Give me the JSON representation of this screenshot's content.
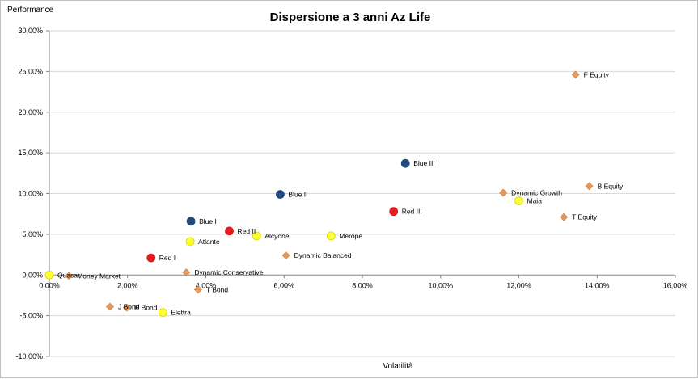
{
  "chart_data": {
    "type": "scatter",
    "title": "Dispersione a 3 anni Az Life",
    "xlabel": "Volatilità",
    "ylabel": "Performance",
    "xlim": [
      0,
      16
    ],
    "ylim": [
      -10,
      30
    ],
    "x_ticks": [
      0,
      2,
      4,
      6,
      8,
      10,
      12,
      14,
      16
    ],
    "y_ticks": [
      -10,
      -5,
      0,
      5,
      10,
      15,
      20,
      25,
      30
    ],
    "x_tick_labels": [
      "0,00%",
      "2,00%",
      "4,00%",
      "6,00%",
      "8,00%",
      "10,00%",
      "12,00%",
      "14,00%",
      "16,00%"
    ],
    "y_tick_labels": [
      "-10,00%",
      "-5,00%",
      "0,00%",
      "5,00%",
      "10,00%",
      "15,00%",
      "20,00%",
      "25,00%",
      "30,00%"
    ],
    "grid": "horizontal",
    "colors": {
      "blue": "#1f497d",
      "red": "#e41a1c",
      "yellow": "#ffff33",
      "orange": "#e59a5c",
      "grid": "#d9d9d9",
      "axis": "#868686"
    },
    "series": [
      {
        "name": "Blue",
        "marker": "circle",
        "color": "#1f497d",
        "points": [
          {
            "label": "Blue I",
            "x": 3.62,
            "y": 6.6
          },
          {
            "label": "Blue II",
            "x": 5.9,
            "y": 9.9
          },
          {
            "label": "Blue III",
            "x": 9.1,
            "y": 13.7
          }
        ]
      },
      {
        "name": "Red",
        "marker": "circle",
        "color": "#e41a1c",
        "points": [
          {
            "label": "Red I",
            "x": 2.6,
            "y": 2.1
          },
          {
            "label": "Red II",
            "x": 4.6,
            "y": 5.4
          },
          {
            "label": "Red III",
            "x": 8.8,
            "y": 7.8
          }
        ]
      },
      {
        "name": "Yellow",
        "marker": "circle",
        "color": "#ffff33",
        "points": [
          {
            "label": "Quasar",
            "x": 0.0,
            "y": 0.0
          },
          {
            "label": "Atlante",
            "x": 3.6,
            "y": 4.1
          },
          {
            "label": "Alcyone",
            "x": 5.3,
            "y": 4.8
          },
          {
            "label": "Merope",
            "x": 7.2,
            "y": 4.8
          },
          {
            "label": "Maia",
            "x": 12.0,
            "y": 9.1
          },
          {
            "label": "Elettra",
            "x": 2.9,
            "y": -4.6
          }
        ]
      },
      {
        "name": "Orange",
        "marker": "diamond",
        "color": "#e59a5c",
        "points": [
          {
            "label": "Money Market",
            "x": 0.5,
            "y": -0.1
          },
          {
            "label": "J Bond",
            "x": 1.55,
            "y": -3.9
          },
          {
            "label": "P Bond",
            "x": 1.98,
            "y": -4.0
          },
          {
            "label": "Dynamic Conservative",
            "x": 3.5,
            "y": 0.3
          },
          {
            "label": "T Bond",
            "x": 3.8,
            "y": -1.8
          },
          {
            "label": "Dynamic Balanced",
            "x": 6.05,
            "y": 2.4
          },
          {
            "label": "Dynamic Growth",
            "x": 11.6,
            "y": 10.1
          },
          {
            "label": "T Equity",
            "x": 13.15,
            "y": 7.1
          },
          {
            "label": "F Equity",
            "x": 13.45,
            "y": 24.6
          },
          {
            "label": "B Equity",
            "x": 13.8,
            "y": 10.9
          }
        ]
      }
    ]
  }
}
